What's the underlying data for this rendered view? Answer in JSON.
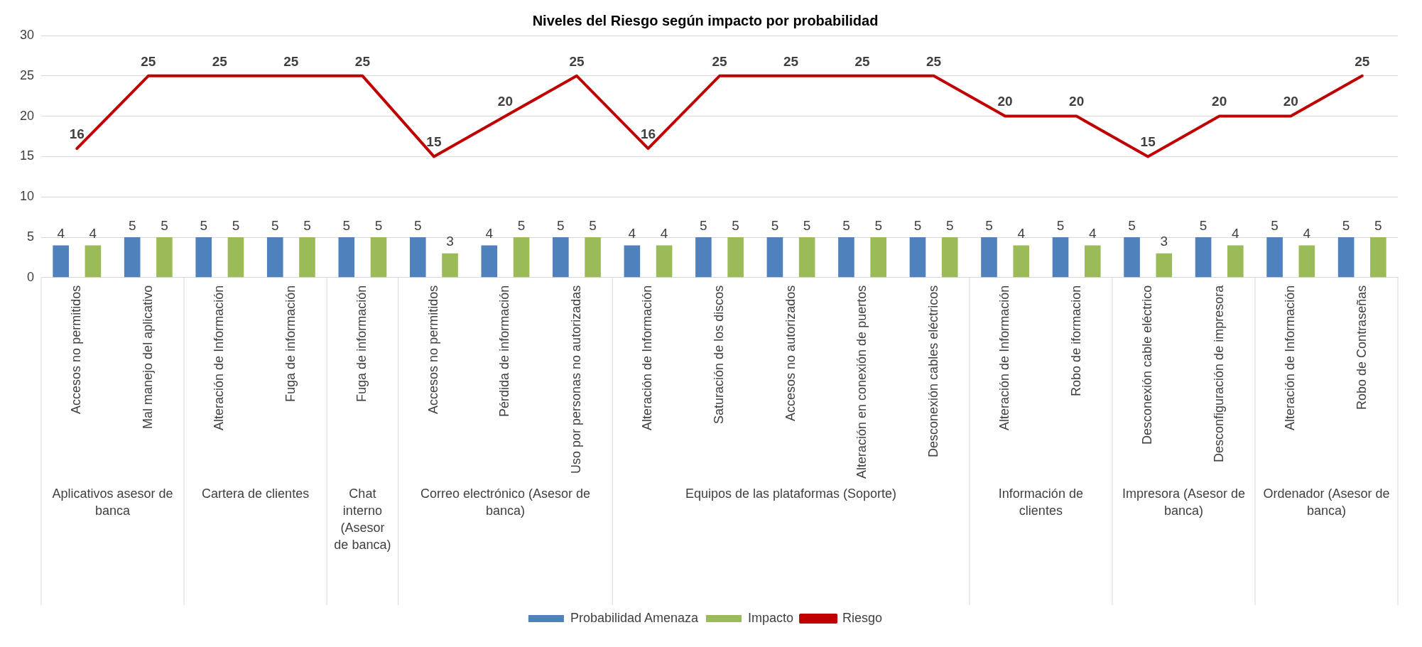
{
  "chart_data": {
    "type": "bar",
    "title": "Niveles del Riesgo según impacto por probabilidad",
    "categories": [
      "Accesos no permitidos",
      "Mal manejo del aplicativo",
      "Alteración de Información",
      "Fuga de información",
      "Fuga de información",
      "Accesos no permitidos",
      "Pérdida de información",
      "Uso por personas no autorizadas",
      "Alteración de Información",
      "Saturación de los discos",
      "Accesos no autorizados",
      "Alteración en conexión de puertos",
      "Desconexión cables eléctricos",
      "Alteración de Información",
      "Robo de iformacion",
      "Desconexión cable eléctrico",
      "Desconfiguración de impresora",
      "Alteración de Información",
      "Robo de Contraseñas"
    ],
    "series": [
      {
        "name": "Probabilidad Amenaza",
        "color": "#4f81bd",
        "values": [
          4,
          5,
          5,
          5,
          5,
          5,
          4,
          5,
          4,
          5,
          5,
          5,
          5,
          5,
          5,
          5,
          5,
          5,
          5
        ]
      },
      {
        "name": "Impacto",
        "color": "#9bbb59",
        "values": [
          4,
          5,
          5,
          5,
          5,
          3,
          5,
          5,
          4,
          5,
          5,
          5,
          5,
          4,
          4,
          3,
          4,
          4,
          5
        ]
      },
      {
        "name": "Riesgo",
        "type": "line",
        "color": "#c00000",
        "values": [
          16,
          25,
          25,
          25,
          25,
          15,
          20,
          25,
          16,
          25,
          25,
          25,
          25,
          20,
          20,
          15,
          20,
          20,
          25
        ]
      }
    ],
    "annotations": [
      "Aplicativos asesor de banca",
      "Cartera de clientes",
      "Chat interno (Asesor de banca)",
      "Correo electrónico (Asesor de banca)",
      "Equipos de las plataformas (Soporte)",
      "Información de clientes",
      "Impresora (Asesor de banca)",
      "Ordenador (Asesor de banca)"
    ],
    "ylim": [
      0,
      30
    ],
    "yticks": [
      0,
      5,
      10,
      15,
      20,
      25,
      30
    ],
    "grid": "y",
    "legend": "bottom",
    "data_labels": true,
    "line_style": "solid",
    "marker": "none"
  }
}
